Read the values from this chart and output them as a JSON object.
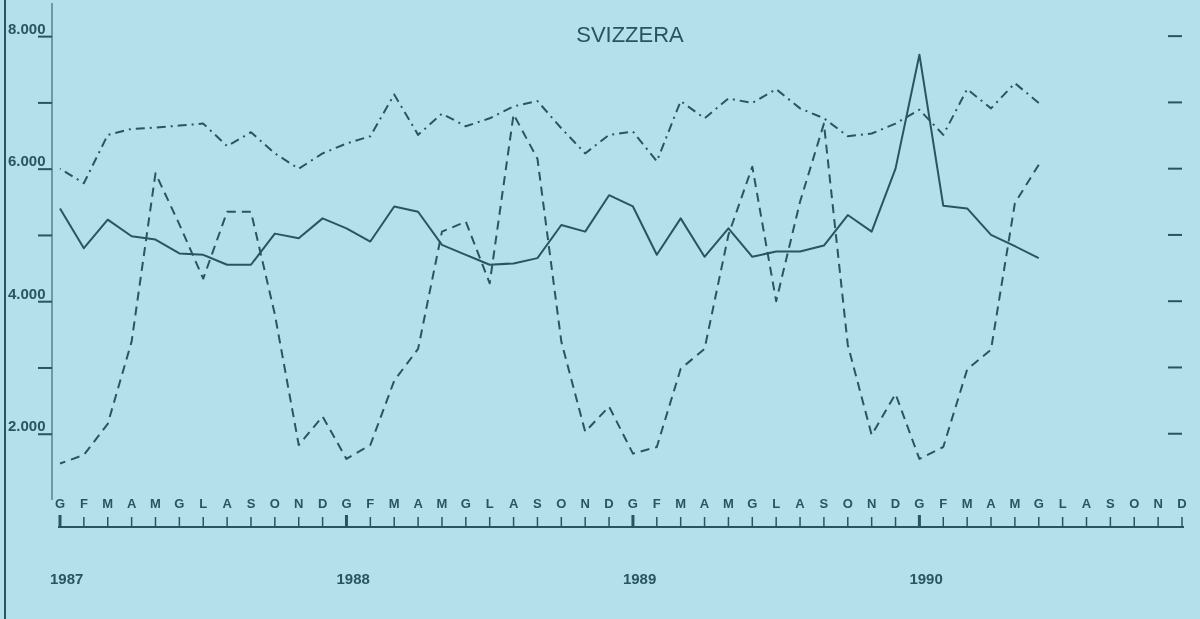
{
  "chart_data": {
    "type": "line",
    "title": "SVIZZERA",
    "categories": [
      "G",
      "F",
      "M",
      "A",
      "M",
      "G",
      "L",
      "A",
      "S",
      "O",
      "N",
      "D",
      "G",
      "F",
      "M",
      "A",
      "M",
      "G",
      "L",
      "A",
      "S",
      "O",
      "N",
      "D",
      "G",
      "F",
      "M",
      "A",
      "M",
      "G",
      "L",
      "A",
      "S",
      "O",
      "N",
      "D",
      "G",
      "F",
      "M",
      "A",
      "M",
      "G",
      "L",
      "A",
      "S",
      "O",
      "N",
      "D"
    ],
    "series": [
      {
        "color": "#2a5560",
        "line_style": "solid",
        "values": [
          5400,
          4800,
          5230,
          4980,
          4930,
          4720,
          4700,
          4550,
          4550,
          5020,
          4950,
          5250,
          5100,
          4900,
          5430,
          5350,
          4850,
          4700,
          4550,
          4570,
          4650,
          5150,
          5050,
          5600,
          5430,
          4700,
          5250,
          4670,
          5100,
          4670,
          4750,
          4750,
          4840,
          5300,
          5050,
          6000,
          7720,
          5440,
          5400,
          5000,
          4830,
          4650,
          null,
          null,
          null,
          null,
          null,
          null
        ]
      },
      {
        "color": "#2a5560",
        "line_style": "dashed",
        "values": [
          1550,
          1680,
          2150,
          3390,
          5930,
          5160,
          4340,
          5350,
          5350,
          3800,
          1830,
          2260,
          1620,
          1830,
          2800,
          3280,
          5050,
          5200,
          4270,
          6820,
          6150,
          3390,
          2030,
          2410,
          1700,
          1800,
          2980,
          3280,
          5000,
          6030,
          4000,
          5500,
          6680,
          3340,
          1980,
          2600,
          1620,
          1800,
          2970,
          3270,
          5480,
          6060,
          null,
          null,
          null,
          null,
          null,
          null
        ]
      },
      {
        "color": "#2a5560",
        "line_style": "dashdot",
        "values": [
          6000,
          5780,
          6510,
          6600,
          6620,
          6650,
          6680,
          6340,
          6550,
          6230,
          6000,
          6230,
          6380,
          6490,
          7120,
          6510,
          6830,
          6640,
          6760,
          6940,
          7020,
          6610,
          6230,
          6510,
          6560,
          6110,
          7020,
          6760,
          7060,
          6990,
          7200,
          6910,
          6760,
          6490,
          6530,
          6680,
          6890,
          6510,
          7200,
          6910,
          7290,
          6990,
          null,
          null,
          null,
          null,
          null,
          null
        ]
      }
    ],
    "ylim": [
      1000,
      8500
    ],
    "yticks": [
      {
        "value": 2000,
        "label": "2.000"
      },
      {
        "value": 3000,
        "label": null
      },
      {
        "value": 4000,
        "label": "4.000"
      },
      {
        "value": 5000,
        "label": null
      },
      {
        "value": 6000,
        "label": "6.000"
      },
      {
        "value": 7000,
        "label": null
      },
      {
        "value": 8000,
        "label": "8.000"
      }
    ],
    "annotations": [
      "1987",
      "1988",
      "1989",
      "1990"
    ],
    "grid": false
  }
}
